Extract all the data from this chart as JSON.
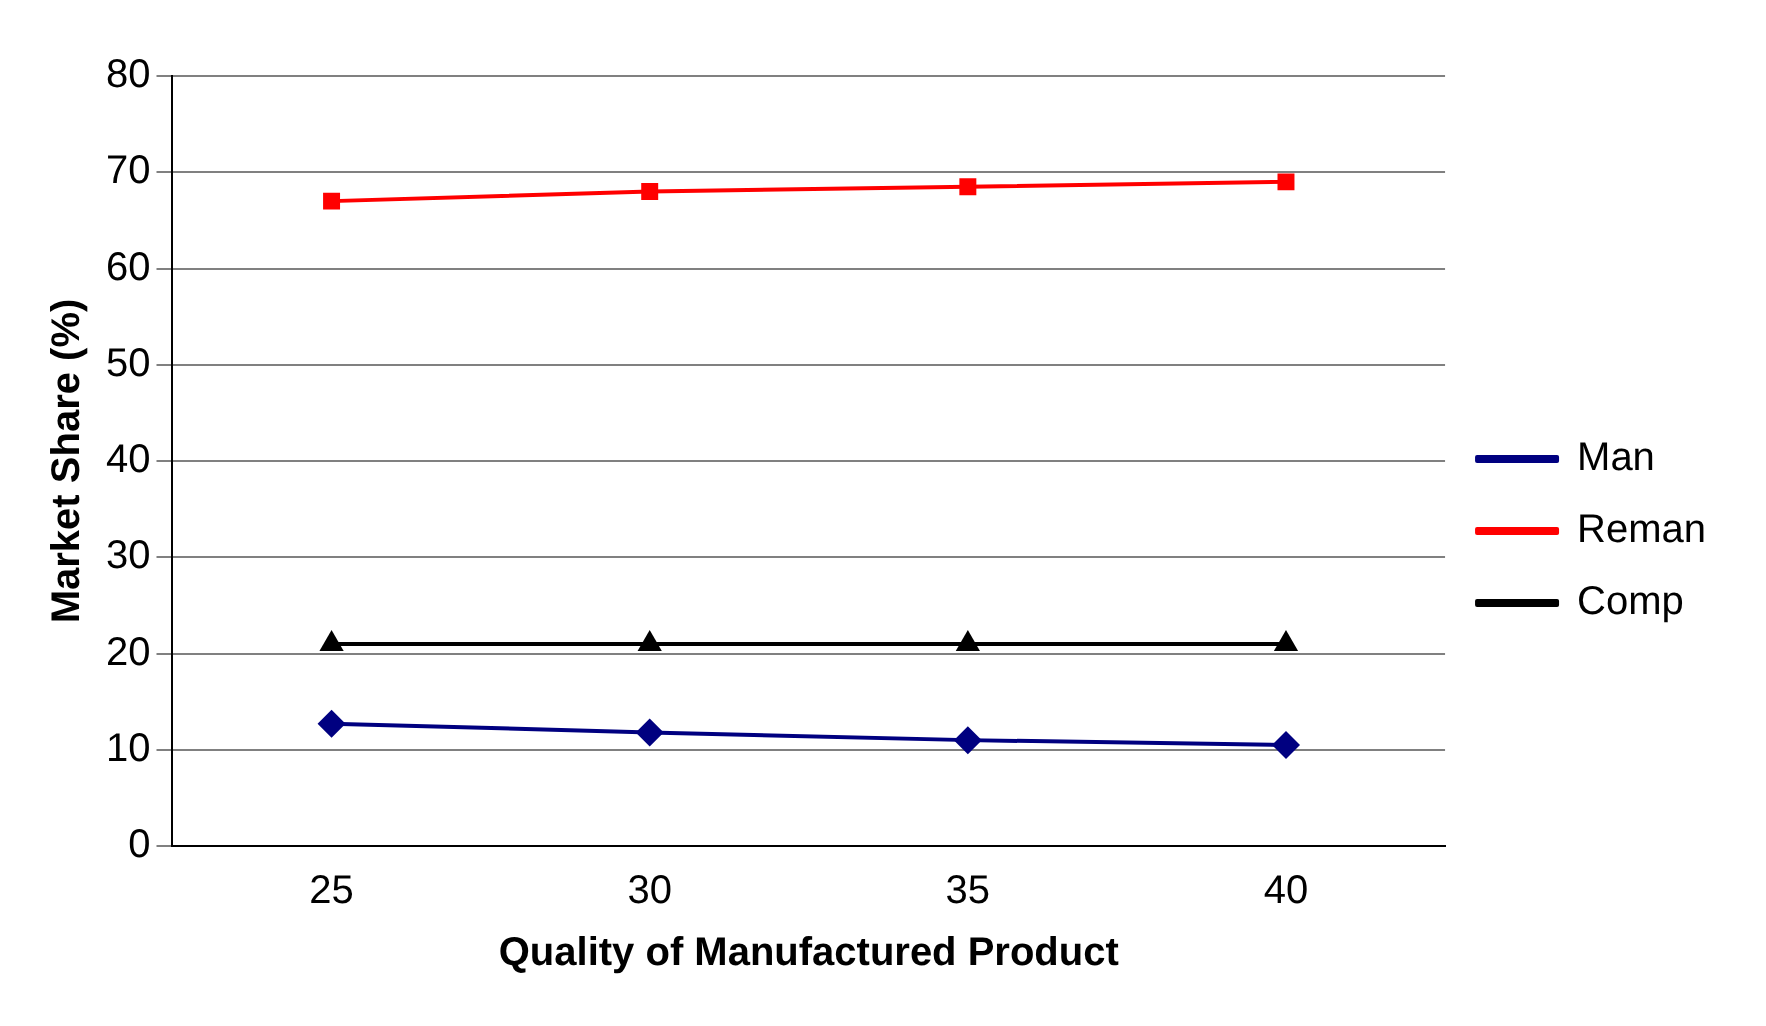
{
  "chart_data": {
    "type": "line",
    "xlabel": "Quality of Manufactured Product",
    "ylabel": "Market Share (%)",
    "categories": [
      "25",
      "30",
      "35",
      "40"
    ],
    "series": [
      {
        "name": "Man",
        "color": "#000080",
        "marker": "diamond",
        "values": [
          12.7,
          11.8,
          11,
          10.5
        ]
      },
      {
        "name": "Reman",
        "color": "#ff0000",
        "marker": "square",
        "values": [
          67,
          68,
          68.5,
          69
        ]
      },
      {
        "name": "Comp",
        "color": "#000000",
        "marker": "triangle",
        "values": [
          21,
          21,
          21,
          21
        ]
      }
    ],
    "ylim": [
      0,
      80
    ],
    "yticks": [
      0,
      10,
      20,
      30,
      40,
      50,
      60,
      70,
      80
    ],
    "grid": "y",
    "legend": "right"
  }
}
